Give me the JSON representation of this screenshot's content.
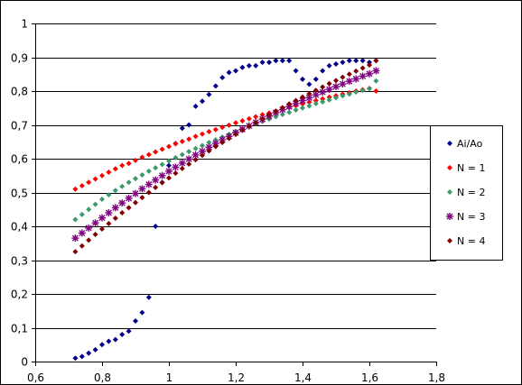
{
  "chart_data": {
    "type": "scatter",
    "title": "",
    "xlabel": "",
    "ylabel": "",
    "xlim": [
      0.6,
      1.8
    ],
    "ylim": [
      0,
      1
    ],
    "xticks": [
      0.6,
      0.8,
      1.0,
      1.2,
      1.4,
      1.6,
      1.8
    ],
    "yticks": [
      0,
      0.1,
      0.2,
      0.3,
      0.4,
      0.5,
      0.6,
      0.7,
      0.8,
      0.9,
      1.0
    ],
    "xtick_labels": [
      "0,6",
      "0,8",
      "1",
      "1,2",
      "1,4",
      "1,6",
      "1,8"
    ],
    "ytick_labels": [
      "0",
      "0,1",
      "0,2",
      "0,3",
      "0,4",
      "0,5",
      "0,6",
      "0,7",
      "0,8",
      "0,9",
      "1"
    ],
    "grid": "horizontal major lines",
    "legend_position": "right",
    "series": [
      {
        "name": "Ai/Ao",
        "color": "#00008b",
        "marker": "diamond",
        "x": [
          0.72,
          0.74,
          0.76,
          0.78,
          0.8,
          0.82,
          0.84,
          0.86,
          0.88,
          0.9,
          0.92,
          0.94,
          0.96,
          0.98,
          1.0,
          1.02,
          1.04,
          1.06,
          1.08,
          1.1,
          1.12,
          1.14,
          1.16,
          1.18,
          1.2,
          1.22,
          1.24,
          1.26,
          1.28,
          1.3,
          1.32,
          1.34,
          1.36,
          1.38,
          1.4,
          1.42,
          1.44,
          1.46,
          1.48,
          1.5,
          1.52,
          1.54,
          1.56,
          1.58,
          1.6,
          1.62
        ],
        "y": [
          0.01,
          0.015,
          0.025,
          0.035,
          0.05,
          0.06,
          0.065,
          0.08,
          0.09,
          0.12,
          0.145,
          0.19,
          0.4,
          0.53,
          0.58,
          0.645,
          0.69,
          0.7,
          0.755,
          0.77,
          0.79,
          0.815,
          0.84,
          0.855,
          0.86,
          0.87,
          0.875,
          0.875,
          0.885,
          0.885,
          0.89,
          0.89,
          0.89,
          0.86,
          0.835,
          0.82,
          0.835,
          0.86,
          0.875,
          0.88,
          0.885,
          0.89,
          0.89,
          0.89,
          0.885,
          0.89
        ]
      },
      {
        "name": "N = 1",
        "color": "#ff0000",
        "marker": "diamond",
        "x": [
          0.72,
          0.74,
          0.76,
          0.78,
          0.8,
          0.82,
          0.84,
          0.86,
          0.88,
          0.9,
          0.92,
          0.94,
          0.96,
          0.98,
          1.0,
          1.02,
          1.04,
          1.06,
          1.08,
          1.1,
          1.12,
          1.14,
          1.16,
          1.18,
          1.2,
          1.22,
          1.24,
          1.26,
          1.28,
          1.3,
          1.32,
          1.34,
          1.36,
          1.38,
          1.4,
          1.42,
          1.44,
          1.46,
          1.48,
          1.5,
          1.52,
          1.54,
          1.56,
          1.58,
          1.6,
          1.62
        ],
        "y": [
          0.51,
          0.52,
          0.53,
          0.54,
          0.55,
          0.56,
          0.57,
          0.58,
          0.586,
          0.595,
          0.604,
          0.612,
          0.62,
          0.628,
          0.636,
          0.644,
          0.651,
          0.658,
          0.666,
          0.673,
          0.68,
          0.686,
          0.693,
          0.699,
          0.706,
          0.712,
          0.718,
          0.724,
          0.73,
          0.735,
          0.741,
          0.746,
          0.752,
          0.757,
          0.762,
          0.767,
          0.772,
          0.777,
          0.782,
          0.786,
          0.791,
          0.795,
          0.8,
          0.804,
          0.808,
          0.8
        ]
      },
      {
        "name": "N = 2",
        "color": "#3a9a6a",
        "marker": "diamond",
        "x": [
          0.72,
          0.74,
          0.76,
          0.78,
          0.8,
          0.82,
          0.84,
          0.86,
          0.88,
          0.9,
          0.92,
          0.94,
          0.96,
          0.98,
          1.0,
          1.02,
          1.04,
          1.06,
          1.08,
          1.1,
          1.12,
          1.14,
          1.16,
          1.18,
          1.2,
          1.22,
          1.24,
          1.26,
          1.28,
          1.3,
          1.32,
          1.34,
          1.36,
          1.38,
          1.4,
          1.42,
          1.44,
          1.46,
          1.48,
          1.5,
          1.52,
          1.54,
          1.56,
          1.58,
          1.6,
          1.62
        ],
        "y": [
          0.42,
          0.435,
          0.45,
          0.465,
          0.48,
          0.493,
          0.506,
          0.518,
          0.53,
          0.541,
          0.552,
          0.563,
          0.573,
          0.583,
          0.593,
          0.603,
          0.612,
          0.621,
          0.63,
          0.639,
          0.648,
          0.656,
          0.664,
          0.672,
          0.68,
          0.688,
          0.695,
          0.703,
          0.71,
          0.717,
          0.724,
          0.731,
          0.737,
          0.744,
          0.75,
          0.756,
          0.763,
          0.768,
          0.774,
          0.78,
          0.786,
          0.791,
          0.797,
          0.802,
          0.807,
          0.83
        ]
      },
      {
        "name": "N = 3",
        "color": "#800080",
        "marker": "asterisk",
        "x": [
          0.72,
          0.74,
          0.76,
          0.78,
          0.8,
          0.82,
          0.84,
          0.86,
          0.88,
          0.9,
          0.92,
          0.94,
          0.96,
          0.98,
          1.0,
          1.02,
          1.04,
          1.06,
          1.08,
          1.1,
          1.12,
          1.14,
          1.16,
          1.18,
          1.2,
          1.22,
          1.24,
          1.26,
          1.28,
          1.3,
          1.32,
          1.34,
          1.36,
          1.38,
          1.4,
          1.42,
          1.44,
          1.46,
          1.48,
          1.5,
          1.52,
          1.54,
          1.56,
          1.58,
          1.6,
          1.62
        ],
        "y": [
          0.365,
          0.38,
          0.395,
          0.41,
          0.425,
          0.44,
          0.455,
          0.469,
          0.483,
          0.497,
          0.511,
          0.524,
          0.537,
          0.55,
          0.563,
          0.575,
          0.587,
          0.599,
          0.611,
          0.622,
          0.634,
          0.645,
          0.656,
          0.666,
          0.677,
          0.687,
          0.697,
          0.707,
          0.717,
          0.726,
          0.736,
          0.745,
          0.754,
          0.763,
          0.772,
          0.78,
          0.789,
          0.797,
          0.805,
          0.813,
          0.821,
          0.829,
          0.836,
          0.844,
          0.851,
          0.86
        ]
      },
      {
        "name": "N = 4",
        "color": "#800000",
        "marker": "diamond",
        "x": [
          0.72,
          0.74,
          0.76,
          0.78,
          0.8,
          0.82,
          0.84,
          0.86,
          0.88,
          0.9,
          0.92,
          0.94,
          0.96,
          0.98,
          1.0,
          1.02,
          1.04,
          1.06,
          1.08,
          1.1,
          1.12,
          1.14,
          1.16,
          1.18,
          1.2,
          1.22,
          1.24,
          1.26,
          1.28,
          1.3,
          1.32,
          1.34,
          1.36,
          1.38,
          1.4,
          1.42,
          1.44,
          1.46,
          1.48,
          1.5,
          1.52,
          1.54,
          1.56,
          1.58,
          1.6,
          1.62
        ],
        "y": [
          0.325,
          0.342,
          0.359,
          0.376,
          0.392,
          0.408,
          0.424,
          0.44,
          0.455,
          0.47,
          0.485,
          0.5,
          0.515,
          0.529,
          0.543,
          0.557,
          0.571,
          0.584,
          0.597,
          0.61,
          0.623,
          0.636,
          0.648,
          0.66,
          0.672,
          0.684,
          0.696,
          0.707,
          0.718,
          0.729,
          0.74,
          0.751,
          0.762,
          0.772,
          0.782,
          0.792,
          0.802,
          0.812,
          0.822,
          0.831,
          0.841,
          0.85,
          0.859,
          0.868,
          0.877,
          0.89
        ]
      }
    ]
  }
}
